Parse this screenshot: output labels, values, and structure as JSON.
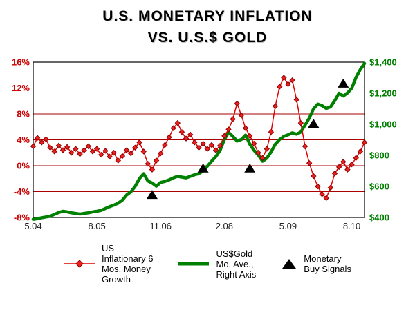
{
  "title": {
    "line1": "U.S. MONETARY INFLATION",
    "line2": "VS. U.S.$ GOLD"
  },
  "colors": {
    "gridline": "#aa0000",
    "border": "#000000",
    "left_label": "#cc0000",
    "right_label": "#008000",
    "x_label": "#222222",
    "inflation_line": "#e00000",
    "marker_fill": "#ee2020",
    "marker_stroke": "#8b0000",
    "gold_line": "#008000",
    "signal": "#000000"
  },
  "chart_data": {
    "type": "line",
    "title": "U.S. MONETARY INFLATION VS. U.S.$ GOLD",
    "x_axis": {
      "range": [
        0,
        78
      ],
      "ticks": [
        {
          "label": "5.04",
          "t": 0
        },
        {
          "label": "8.05",
          "t": 15
        },
        {
          "label": "11.06",
          "t": 30
        },
        {
          "label": "2.08",
          "t": 45
        },
        {
          "label": "5.09",
          "t": 60
        },
        {
          "label": "8.10",
          "t": 75
        }
      ]
    },
    "left_axis": {
      "min": -8,
      "max": 16,
      "ticks": [
        {
          "label": "16%",
          "value": 16
        },
        {
          "label": "12%",
          "value": 12
        },
        {
          "label": "8%",
          "value": 8
        },
        {
          "label": "4%",
          "value": 4
        },
        {
          "label": "0%",
          "value": 0
        },
        {
          "label": "-4%",
          "value": -4
        },
        {
          "label": "-8%",
          "value": -8
        }
      ]
    },
    "right_axis": {
      "min": 400,
      "max": 1400,
      "ticks": [
        {
          "label": "$1,400",
          "value": 1400
        },
        {
          "label": "$1,200",
          "value": 1200
        },
        {
          "label": "$1,000",
          "value": 1000
        },
        {
          "label": "$800",
          "value": 800
        },
        {
          "label": "$600",
          "value": 600
        },
        {
          "label": "$400",
          "value": 400
        }
      ]
    },
    "series": [
      {
        "name": "US Inflationary 6 Mos. Money Growth",
        "axis": "left",
        "marker": "diamond",
        "color": "#e00000",
        "marker_fill": "#ee2020",
        "marker_stroke": "#8b0000",
        "values": [
          3.0,
          4.3,
          3.6,
          4.1,
          2.8,
          2.2,
          3.1,
          2.4,
          2.9,
          2.0,
          2.6,
          1.8,
          2.4,
          3.0,
          2.2,
          2.6,
          1.7,
          2.3,
          1.4,
          2.0,
          0.8,
          1.5,
          2.4,
          1.9,
          2.8,
          3.6,
          2.2,
          0.3,
          -0.6,
          0.8,
          1.9,
          3.2,
          4.4,
          5.8,
          6.6,
          5.2,
          4.2,
          4.8,
          3.6,
          2.8,
          3.4,
          2.6,
          3.2,
          2.4,
          3.1,
          4.6,
          5.6,
          7.2,
          9.6,
          7.8,
          5.8,
          4.6,
          3.4,
          2.0,
          1.2,
          2.6,
          5.2,
          9.2,
          12.2,
          13.6,
          12.6,
          13.2,
          10.2,
          6.6,
          3.0,
          0.4,
          -1.6,
          -3.2,
          -4.4,
          -5.0,
          -3.4,
          -1.2,
          -0.2,
          0.6,
          -0.6,
          0.2,
          1.2,
          2.2,
          3.6
        ]
      },
      {
        "name": "US$Gold Mo. Ave., Right Axis",
        "axis": "right",
        "marker": "none",
        "color": "#008000",
        "values": [
          388,
          392,
          398,
          403,
          408,
          420,
          432,
          440,
          436,
          430,
          426,
          422,
          426,
          430,
          436,
          440,
          446,
          458,
          470,
          480,
          492,
          512,
          545,
          565,
          600,
          650,
          682,
          635,
          622,
          602,
          626,
          632,
          642,
          655,
          665,
          660,
          655,
          665,
          675,
          682,
          700,
          730,
          762,
          792,
          832,
          902,
          948,
          922,
          892,
          902,
          930,
          872,
          832,
          802,
          762,
          782,
          822,
          872,
          902,
          922,
          932,
          945,
          936,
          950,
          995,
          1040,
          1100,
          1130,
          1120,
          1102,
          1112,
          1152,
          1200,
          1182,
          1202,
          1232,
          1302,
          1352,
          1392
        ]
      }
    ],
    "buy_signals": {
      "name": "Monetary Buy Signals",
      "axis": "left",
      "marker": "triangle",
      "color": "#000000",
      "points": [
        {
          "t": 28,
          "value": -4.6
        },
        {
          "t": 40,
          "value": -0.5
        },
        {
          "t": 51,
          "value": -0.5
        },
        {
          "t": 66,
          "value": 6.4
        },
        {
          "t": 73,
          "value": 12.6
        }
      ]
    },
    "legend_position": "bottom",
    "grid": "horizontal"
  },
  "legend": {
    "inflation": {
      "label": "US\nInflationary 6\nMos. Money\nGrowth"
    },
    "gold": {
      "label": "US$Gold\nMo. Ave.,\nRight Axis"
    },
    "signals": {
      "label": "Monetary\nBuy Signals"
    }
  }
}
